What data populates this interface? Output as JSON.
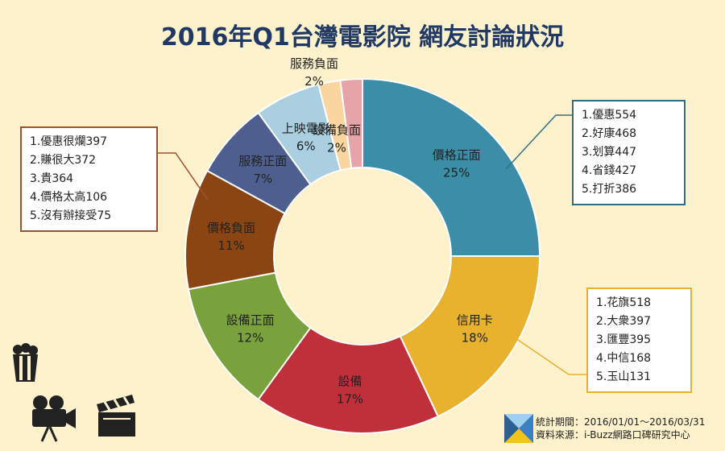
{
  "chart_data": {
    "type": "pie",
    "title": "2016年Q1台灣電影院 網友討論狀況",
    "categories": [
      "價格正面",
      "信用卡",
      "設備",
      "設備正面",
      "價格負面",
      "服務正面",
      "上映電影",
      "服務負面",
      "設備負面"
    ],
    "values": [
      25,
      18,
      17,
      12,
      11,
      7,
      6,
      2,
      2
    ],
    "value_labels": [
      "25%",
      "18%",
      "17%",
      "12%",
      "11%",
      "7%",
      "6%",
      "2%",
      "2%"
    ],
    "colors": [
      "#3c8ea8",
      "#e8b12e",
      "#c0303a",
      "#7aa23c",
      "#8b4513",
      "#4e5f8f",
      "#a9cfe0",
      "#f9d6a0",
      "#e6a3a8"
    ],
    "annotations": [
      {
        "target": "價格負面",
        "border_color": "#a0522d",
        "items": [
          "1.優惠很爛397",
          "2.賺很大372",
          "3.貴364",
          "4.價格太高106",
          "5.沒有辦接受75"
        ]
      },
      {
        "target": "價格正面",
        "border_color": "#2f6f86",
        "items": [
          "1.優惠554",
          "2.好康468",
          "3.划算447",
          "4.省錢427",
          "5.打折386"
        ]
      },
      {
        "target": "信用卡",
        "border_color": "#e8b12e",
        "items": [
          "1.花旗518",
          "2.大衆397",
          "3.匯豐395",
          "4.中信168",
          "5.玉山131"
        ]
      }
    ]
  },
  "footer": {
    "period": "統計期間：2016/01/01～2016/03/31",
    "source": "資料來源：i-Buzz網路口碑研究中心"
  },
  "icons": [
    "popcorn-icon",
    "movie-camera-icon",
    "clapperboard-icon",
    "ibuzz-logo-icon"
  ]
}
